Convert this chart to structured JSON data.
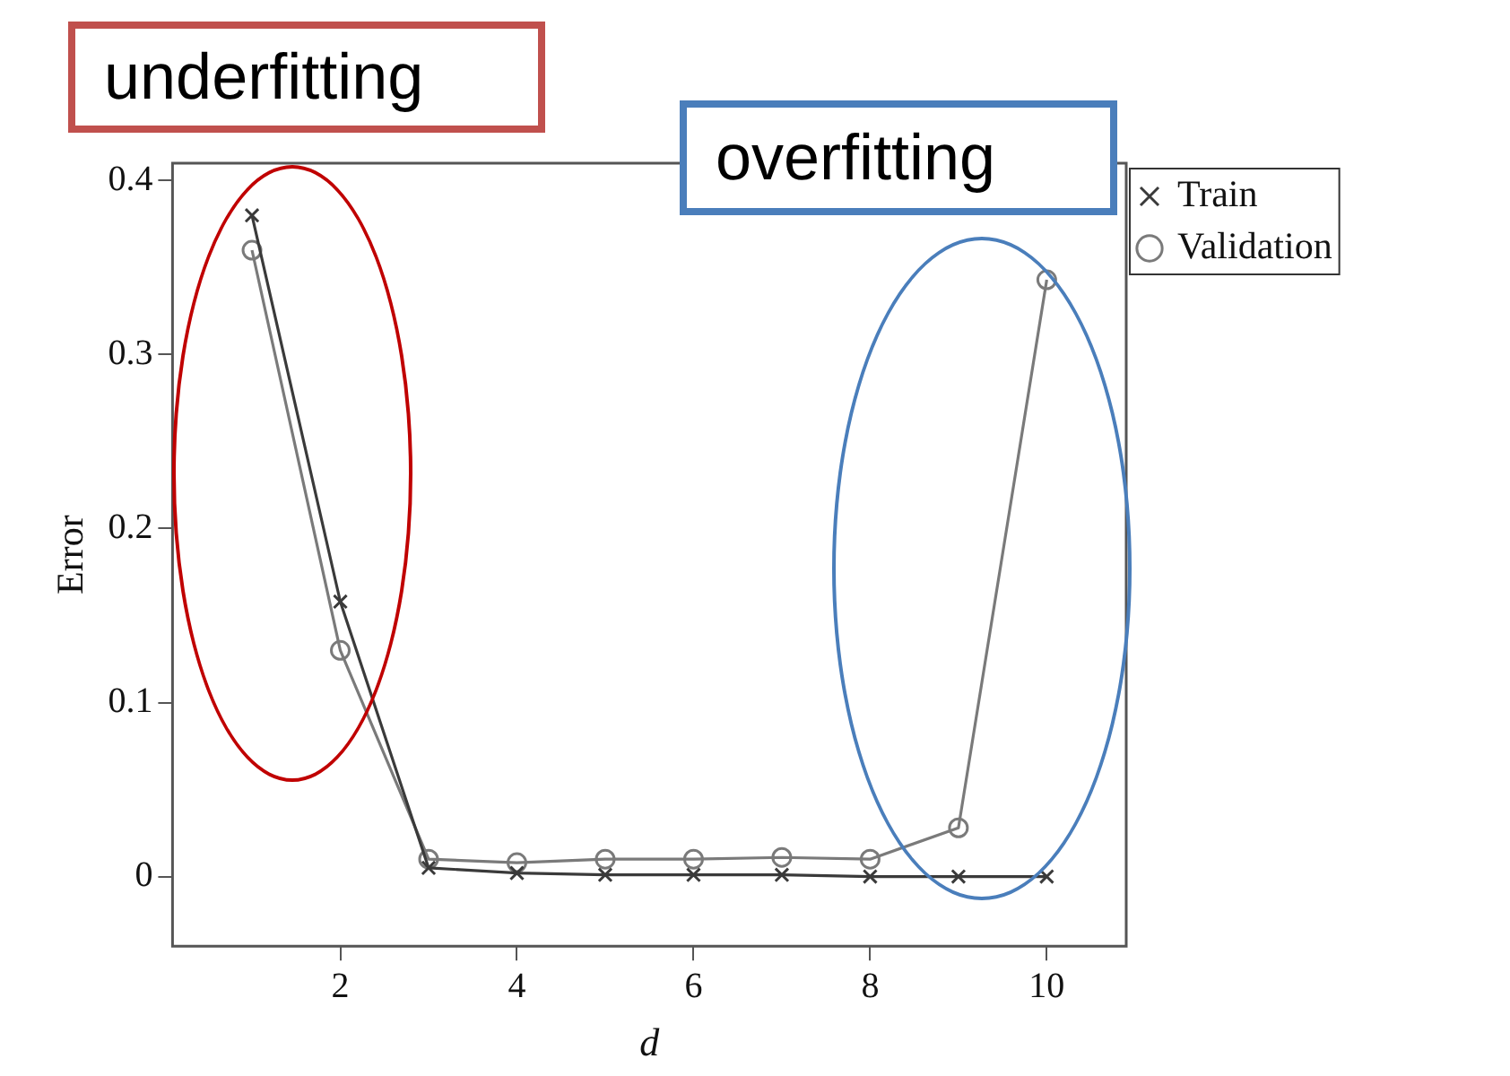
{
  "chart_data": {
    "type": "line",
    "xlabel": "d",
    "ylabel": "Error",
    "annotations": [
      "underfitting",
      "overfitting"
    ],
    "x": [
      1,
      2,
      3,
      4,
      5,
      6,
      7,
      8,
      9,
      10
    ],
    "series": [
      {
        "name": "Train",
        "color": "#3a3a3a",
        "marker": "cross",
        "values": [
          0.38,
          0.158,
          0.005,
          0.002,
          0.001,
          0.001,
          0.001,
          0,
          0,
          0
        ]
      },
      {
        "name": "Validation",
        "color": "#7a7a7a",
        "marker": "circle",
        "values": [
          0.36,
          0.13,
          0.01,
          0.008,
          0.01,
          0.01,
          0.011,
          0.01,
          0.028,
          0.343
        ]
      }
    ],
    "xlim": [
      0.1,
      10.9
    ],
    "xticks": [
      2,
      4,
      6,
      8,
      10
    ],
    "ylim": [
      -0.04,
      0.41
    ],
    "yticks": [
      0,
      0.1,
      0.2,
      0.3,
      0.4
    ],
    "grid": false,
    "legend": "top right",
    "line_style": "solid"
  }
}
